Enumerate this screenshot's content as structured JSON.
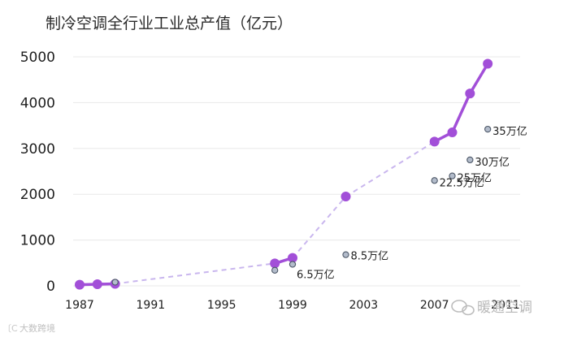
{
  "chart_data": {
    "type": "line",
    "title": "制冷空调全行业工业总产值（亿元）",
    "xlabel": "",
    "ylabel": "",
    "xlim": [
      1987,
      2011
    ],
    "ylim": [
      0,
      5000
    ],
    "grid": true,
    "legend": "none",
    "x_tick_labels": [
      "1987",
      "1991",
      "1995",
      "1999",
      "2003",
      "2007",
      "2011"
    ],
    "y_tick_labels": [
      "0",
      "1000",
      "2000",
      "3000",
      "4000",
      "5000"
    ],
    "colors": {
      "series": "#a24fd8",
      "connector": "#c9b6ee",
      "marker": "#a24fd8",
      "point": "#b3bccb",
      "point_stroke": "#4d5868",
      "grid": "#e8e8e8"
    },
    "series": [
      {
        "segments": [
          [
            {
              "x": 1987,
              "y": 25
            },
            {
              "x": 1988,
              "y": 35
            },
            {
              "x": 1989,
              "y": 45
            }
          ],
          [
            {
              "x": 1998,
              "y": 490
            },
            {
              "x": 1999,
              "y": 610
            }
          ],
          [
            {
              "x": 2002,
              "y": 1950
            }
          ],
          [
            {
              "x": 2007,
              "y": 3150
            },
            {
              "x": 2008,
              "y": 3350
            },
            {
              "x": 2009,
              "y": 4200
            },
            {
              "x": 2010,
              "y": 4850
            }
          ]
        ]
      }
    ],
    "markers": [
      {
        "x": 1989,
        "y": 80,
        "label": ""
      },
      {
        "x": 1998,
        "y": 340,
        "label": ""
      },
      {
        "x": 1999,
        "y": 470,
        "label": "6.5万亿"
      },
      {
        "x": 2002,
        "y": 680,
        "label": "8.5万亿"
      },
      {
        "x": 2007,
        "y": 2300,
        "label": "22.5万亿"
      },
      {
        "x": 2008,
        "y": 2400,
        "label": "25万亿"
      },
      {
        "x": 2009,
        "y": 2750,
        "label": "30万亿"
      },
      {
        "x": 2010,
        "y": 3420,
        "label": "35万亿"
      }
    ]
  },
  "watermarks": {
    "bottom_right": "暖通空调",
    "bottom_left": "大数跨境"
  }
}
